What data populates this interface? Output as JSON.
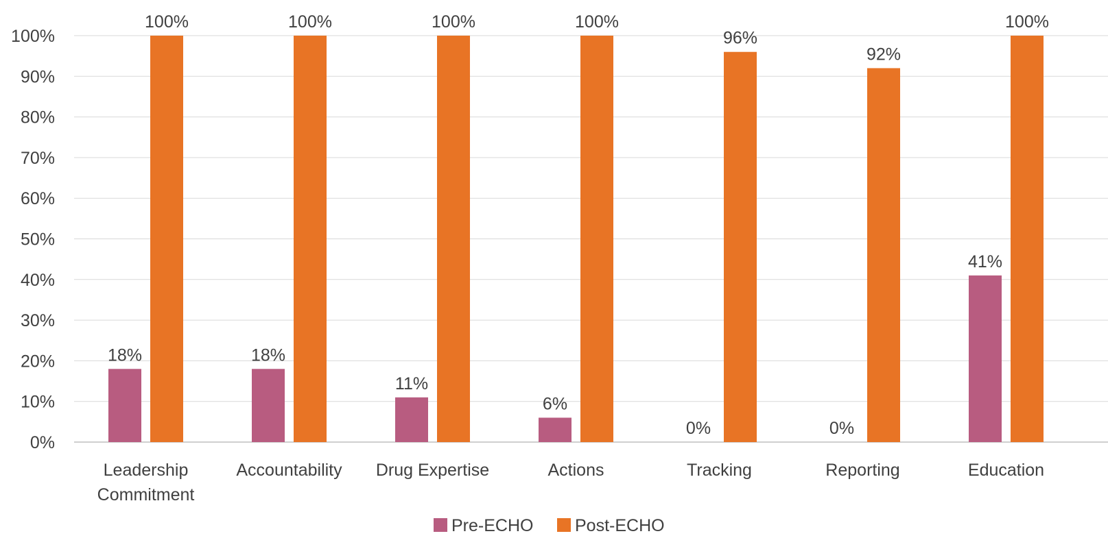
{
  "chart_data": {
    "type": "bar",
    "categories": [
      [
        "Leadership",
        "Commitment"
      ],
      [
        "Accountability"
      ],
      [
        "Drug Expertise"
      ],
      [
        "Actions"
      ],
      [
        "Tracking"
      ],
      [
        "Reporting"
      ],
      [
        "Education"
      ]
    ],
    "series": [
      {
        "name": "Pre-ECHO",
        "color": "#B85C80",
        "values": [
          18,
          18,
          11,
          6,
          0,
          0,
          41
        ],
        "labels": [
          "18%",
          "18%",
          "11%",
          "6%",
          "0%",
          "0%",
          "41%"
        ]
      },
      {
        "name": "Post-ECHO",
        "color": "#E87425",
        "values": [
          100,
          100,
          100,
          100,
          96,
          92,
          100
        ],
        "labels": [
          "100%",
          "100%",
          "100%",
          "100%",
          "96%",
          "92%",
          "100%"
        ]
      }
    ],
    "y_ticks": [
      "0%",
      "10%",
      "20%",
      "30%",
      "40%",
      "50%",
      "60%",
      "70%",
      "80%",
      "90%",
      "100%"
    ],
    "ylim": [
      0,
      100
    ],
    "grid": true,
    "legend": "bottom",
    "title": "",
    "xlabel": "",
    "ylabel": ""
  }
}
